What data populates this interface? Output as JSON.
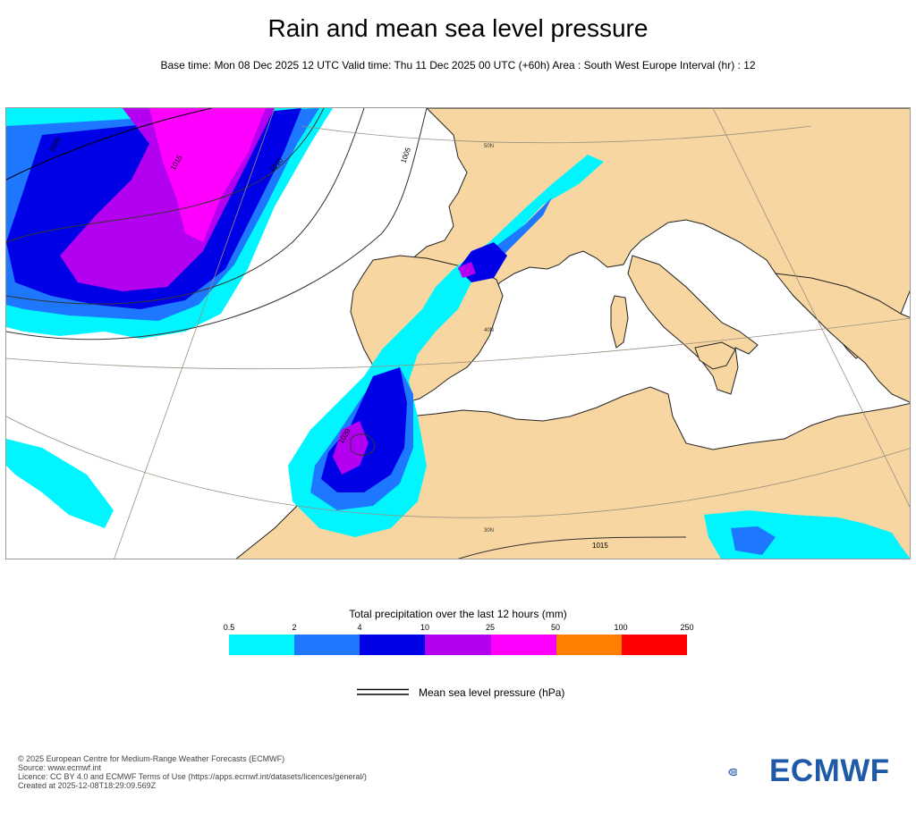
{
  "title": "Rain and mean sea level pressure",
  "subtitle": "Base time: Mon 08 Dec 2025 12 UTC Valid time: Thu 11 Dec 2025 00 UTC (+60h) Area : South West Europe Interval (hr) : 12",
  "map": {
    "region": "South West Europe",
    "colors": {
      "land": "#f7d6a1",
      "sea": "#ffffff",
      "coast": "#222222",
      "grid": "#9a8f80"
    },
    "isobar_labels": [
      "1020",
      "1015",
      "1010",
      "1005",
      "1020",
      "1020",
      "1015",
      "1020"
    ],
    "lat_labels": [
      "50N",
      "40N",
      "30N"
    ]
  },
  "legend": {
    "title": "Total precipitation over the last 12 hours (mm)",
    "ticks": [
      "0.5",
      "2",
      "4",
      "10",
      "25",
      "50",
      "100",
      "250"
    ],
    "colors": [
      "#00f5ff",
      "#1e78ff",
      "#0000e6",
      "#b400f0",
      "#ff00ff",
      "#ff8000",
      "#ff0000"
    ]
  },
  "msl_label": "Mean sea level pressure (hPa)",
  "footer": {
    "line1": "© 2025 European Centre for Medium-Range Weather Forecasts (ECMWF)",
    "line2": "Source: www.ecmwf.int",
    "line3": "Licence: CC BY 4.0 and ECMWF Terms of Use (https://apps.ecmwf.int/datasets/licences/general/)",
    "line4": "Created at 2025-12-08T18:29:09.569Z"
  },
  "logo_text": "ECMWF"
}
